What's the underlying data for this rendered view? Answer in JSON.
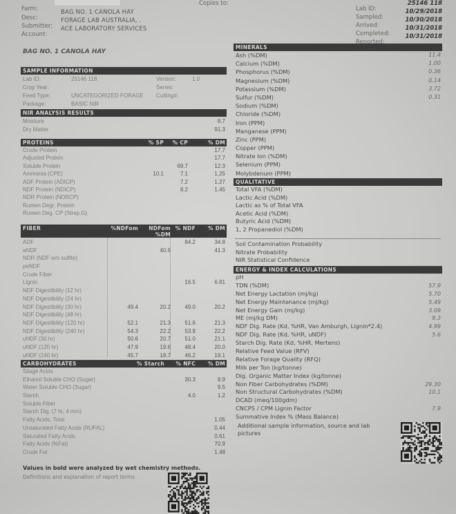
{
  "header": {
    "left": [
      {
        "label": "Farm:",
        "value": ""
      },
      {
        "label": "Desc:",
        "value": "BAG NO. 1 CANOLA HAY"
      },
      {
        "label": "Submitter:",
        "value": "FORAGE LAB AUSTRALIA, ."
      },
      {
        "label": "Account:",
        "value": "ACE LABORATORY SERVICES"
      }
    ],
    "copies_to": "Copies to:",
    "right": [
      {
        "label": "Lab ID:",
        "value": "25146 118"
      },
      {
        "label": "Sampled:",
        "value": "10/29/2018"
      },
      {
        "label": "Arrived:",
        "value": "10/30/2018"
      },
      {
        "label": "Completed:",
        "value": "10/31/2018"
      },
      {
        "label": "Reported:",
        "value": "10/31/2018"
      }
    ]
  },
  "report_title": "BAG NO. 1 CANOLA HAY",
  "sample_info": {
    "title": "SAMPLE INFORMATION",
    "rows": [
      {
        "label": "Lab ID:",
        "value": "25146 118",
        "label2": "Version:",
        "value2": "1.0"
      },
      {
        "label": "Crop Year:",
        "value": "",
        "label2": "Series:",
        "value2": ""
      },
      {
        "label": "Feed Type:",
        "value": "UNCATEGORIZED FORAGE",
        "label2": "Cutting#:",
        "value2": ""
      },
      {
        "label": "Package:",
        "value": "BASIC NIR",
        "label2": "",
        "value2": ""
      }
    ]
  },
  "nir": {
    "title": "NIR ANALYSIS RESULTS",
    "columns": [],
    "rows": [
      {
        "label": "Moisture",
        "values": [
          "8.7"
        ]
      },
      {
        "label": "Dry Matter",
        "values": [
          "91.3"
        ]
      }
    ]
  },
  "proteins": {
    "title": "PROTEINS",
    "columns": [
      "% SP",
      "% CP",
      "% DM"
    ],
    "rows": [
      {
        "label": "Crude Protein",
        "values": [
          "",
          "",
          "17.7"
        ]
      },
      {
        "label": "Adjusted Protein",
        "values": [
          "",
          "",
          "17.7"
        ]
      },
      {
        "label": "Soluble Protein",
        "values": [
          "",
          "69.7",
          "12.3"
        ]
      },
      {
        "label": "Ammonia (CPE)",
        "values": [
          "10.1",
          "7.1",
          "1.25"
        ]
      },
      {
        "label": "ADF Protein (ADICP)",
        "values": [
          "",
          "7.2",
          "1.27"
        ]
      },
      {
        "label": "NDF Protein (NDICP)",
        "values": [
          "",
          "8.2",
          "1.45"
        ]
      },
      {
        "label": "NDR Protein (NDRCP)",
        "values": [
          "",
          "",
          ""
        ]
      },
      {
        "label": "Rumen Degr. Protein",
        "values": [
          "",
          "",
          ""
        ]
      },
      {
        "label": "Rumen Deg. CP (Strep.G)",
        "values": [
          "",
          "",
          ""
        ]
      }
    ]
  },
  "fiber": {
    "title": "FIBER",
    "columns": [
      "%NDFom",
      "NDFom %DM",
      "% NDF",
      "% DM"
    ],
    "rows": [
      {
        "label": "ADF",
        "values": [
          "",
          "",
          "84.2",
          "34.8"
        ]
      },
      {
        "label": "aNDF",
        "values": [
          "",
          "40.9",
          "",
          "41.3"
        ]
      },
      {
        "label": "NDR (NDF w/o sulfite)",
        "values": [
          "",
          "",
          "",
          ""
        ]
      },
      {
        "label": "peNDF",
        "values": [
          "",
          "",
          "",
          ""
        ]
      },
      {
        "label": "Crude Fiber",
        "values": [
          "",
          "",
          "",
          ""
        ]
      },
      {
        "label": "Lignin",
        "values": [
          "",
          "",
          "16.5",
          "6.81"
        ]
      },
      {
        "label": "NDF Digestibility (12 hr)",
        "values": [
          "",
          "",
          "",
          ""
        ]
      },
      {
        "label": "NDF Digestibility (24 hr)",
        "values": [
          "",
          "",
          "",
          ""
        ]
      },
      {
        "label": "NDF Digestibility (30 hr)",
        "values": [
          "49.4",
          "20.2",
          "49.0",
          "20.2"
        ]
      },
      {
        "label": "NDF Digestibility (48 hr)",
        "values": [
          "",
          "",
          "",
          ""
        ]
      },
      {
        "label": "NDF Digestibility (120 hr)",
        "values": [
          "52.1",
          "21.3",
          "51.6",
          "21.3"
        ]
      },
      {
        "label": "NDF Digestibility (240 hr)",
        "values": [
          "54.3",
          "22.2",
          "53.8",
          "22.2"
        ]
      },
      {
        "label": "uNDF (30 hr)",
        "values": [
          "50.6",
          "20.7",
          "51.0",
          "21.1"
        ]
      },
      {
        "label": "uNDF (120 hr)",
        "values": [
          "47.9",
          "19.6",
          "48.4",
          "20.0"
        ]
      },
      {
        "label": "uNDF (240 hr)",
        "values": [
          "45.7",
          "18.7",
          "46.2",
          "19.1"
        ]
      }
    ]
  },
  "carbohydrates": {
    "title": "CARBOHYDRATES",
    "columns": [
      "% Starch",
      "% NFC",
      "% DM"
    ],
    "rows": [
      {
        "label": "Silage Acids",
        "values": [
          "",
          "",
          ""
        ]
      },
      {
        "label": "Ethanol Soluble CHO (Sugar)",
        "values": [
          "",
          "30.3",
          "8.9"
        ]
      },
      {
        "label": "Water Soluble CHO (Sugar)",
        "values": [
          "",
          "",
          "9.5"
        ]
      },
      {
        "label": "Starch",
        "values": [
          "",
          "4.0",
          "1.2"
        ]
      },
      {
        "label": "Soluble Fiber",
        "values": [
          "",
          "",
          ""
        ]
      },
      {
        "label": "Starch Dig. (7 hr, 4 mm)",
        "values": [
          "",
          "",
          ""
        ]
      },
      {
        "label": "Fatty Acids, Total",
        "values": [
          "",
          "",
          "1.05"
        ]
      },
      {
        "label": "Unsaturated Fatty Acids (RUFAL)",
        "values": [
          "",
          "",
          "0.44"
        ]
      },
      {
        "label": "Saturated Fatty Acids",
        "values": [
          "",
          "",
          "0.61"
        ]
      },
      {
        "label": "Fatty Acids (%Fat)",
        "values": [
          "",
          "",
          "70.9"
        ]
      },
      {
        "label": "Crude Fat",
        "values": [
          "",
          "",
          "1.48"
        ]
      }
    ]
  },
  "footer": {
    "note": "Values in bold were analyzed by wet chemistry methods.",
    "definitions_link": "Definitions and explanation of report terms"
  },
  "minerals": {
    "title": "MINERALS",
    "rows": [
      {
        "label": "Ash (%DM)",
        "value": "11.4"
      },
      {
        "label": "Calcium (%DM)",
        "value": "1.00"
      },
      {
        "label": "Phosphorus (%DM)",
        "value": "0.36"
      },
      {
        "label": "Magnesium (%DM)",
        "value": "0.14"
      },
      {
        "label": "Potassium (%DM)",
        "value": "3.72"
      },
      {
        "label": "Sulfur (%DM)",
        "value": "0.31"
      },
      {
        "label": "Sodium (%DM)",
        "value": ""
      },
      {
        "label": "Chloride (%DM)",
        "value": ""
      },
      {
        "label": "Iron (PPM)",
        "value": ""
      },
      {
        "label": "Manganese (PPM)",
        "value": ""
      },
      {
        "label": "Zinc (PPM)",
        "value": ""
      },
      {
        "label": "Copper (PPM)",
        "value": ""
      },
      {
        "label": "Nitrate Ion (%DM)",
        "value": ""
      },
      {
        "label": "Selenium (PPM)",
        "value": ""
      },
      {
        "label": "Molybdenum (PPM)",
        "value": ""
      }
    ]
  },
  "qualitative": {
    "title": "QUALITATIVE",
    "rows": [
      {
        "label": "Total VFA (%DM)",
        "value": ""
      },
      {
        "label": "Lactic Acid (%DM)",
        "value": ""
      },
      {
        "label": "Lactic as % of Total VFA",
        "value": ""
      },
      {
        "label": "Acetic Acid (%DM)",
        "value": ""
      },
      {
        "label": "Butyric Acid (%DM)",
        "value": ""
      },
      {
        "label": "1, 2 Propanediol (%DM)",
        "value": ""
      }
    ]
  },
  "probabilities": {
    "rows": [
      {
        "label": "Soil Contamination Probability",
        "value": ""
      },
      {
        "label": "Nitrate Probability",
        "value": ""
      },
      {
        "label": "NIR Statistical Confidence",
        "value": ""
      }
    ]
  },
  "energy": {
    "title": "ENERGY & INDEX CALCULATIONS",
    "rows": [
      {
        "label": "pH",
        "value": ""
      },
      {
        "label": "TDN (%DM)",
        "value": "57.9"
      },
      {
        "label": "Net Energy Lactation (mj/kg)",
        "value": "5.70"
      },
      {
        "label": "Net Energy Maintenance (mj/kg)",
        "value": "5.49"
      },
      {
        "label": "Net Energy Gain (mj/kg)",
        "value": "3.09"
      },
      {
        "label": "ME (mj/kg DM)",
        "value": "9.3"
      },
      {
        "label": "NDF Dig. Rate (Kd, %HR, Van Amburgh, Lignin*2.4)",
        "value": "4.99"
      },
      {
        "label": "NDF Dig. Rate (Kd, %HR, uNDF)",
        "value": "5.6"
      },
      {
        "label": "Starch Dig. Rate (Kd, %HR, Mertens)",
        "value": ""
      },
      {
        "label": "Relative Feed Value (RFV)",
        "value": ""
      },
      {
        "label": "Relative Forage Quality (RFQ)",
        "value": ""
      },
      {
        "label": "Milk per Ton (kg/tonne)",
        "value": ""
      },
      {
        "label": "Dig. Organic Matter Index (kg/tonne)",
        "value": ""
      },
      {
        "label": "Non Fiber Carbohydrates (%DM)",
        "value": "29.30"
      },
      {
        "label": "Non Structural Carbohydrates (%DM)",
        "value": "10.1"
      },
      {
        "label": "DCAD (meq/100gdm)",
        "value": ""
      },
      {
        "label": "CNCPS / CPM Lignin Factor",
        "value": "7.9"
      },
      {
        "label": "Summative Index % (Mass Balance)",
        "value": ""
      }
    ],
    "additional_info": "Additional sample information, source and lab pictures"
  },
  "icons": {
    "qr_code_right": "qr-code",
    "qr_code_bottom": "qr-code"
  }
}
